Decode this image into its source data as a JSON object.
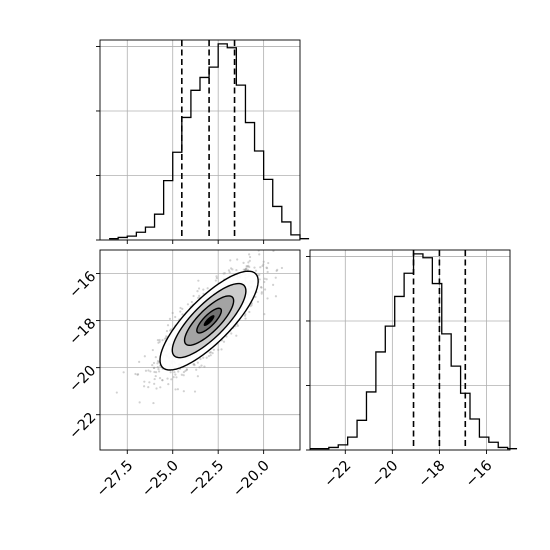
{
  "chart_data": [
    {
      "type": "histogram",
      "panel": "marginal-x",
      "x_range": [
        -29.0,
        -18.0
      ],
      "bin_edges_start": -28.5,
      "bin_width": 0.5,
      "bin_counts": [
        1,
        2,
        3,
        6,
        10,
        20,
        46,
        68,
        95,
        116,
        126,
        134,
        152,
        149,
        120,
        91,
        69,
        47,
        26,
        14,
        4,
        1
      ],
      "ylim": [
        0,
        155
      ],
      "quantile_lines": [
        -24.5,
        -23.0,
        -21.6
      ],
      "y_tick_values": [
        0,
        50,
        100,
        150
      ],
      "x_tick_values": [
        -27.5,
        -25.0,
        -22.5,
        -20.0
      ],
      "grid": true,
      "color": "#000000"
    },
    {
      "type": "histogram",
      "panel": "marginal-y",
      "x_range": [
        -23.5,
        -15.0
      ],
      "bin_edges_start": -23.5,
      "bin_width": 0.4,
      "bin_counts": [
        1,
        1,
        2,
        4,
        10,
        23,
        45,
        76,
        96,
        119,
        137,
        152,
        149,
        129,
        90,
        65,
        44,
        24,
        10,
        6,
        2,
        1
      ],
      "ylim": [
        0,
        155
      ],
      "quantile_lines": [
        -19.1,
        -18.0,
        -16.9
      ],
      "y_tick_values": [
        0,
        50,
        100,
        150
      ],
      "x_tick_values": [
        -22,
        -20,
        -18,
        -16
      ],
      "x_tick_labels": [
        "−22",
        "−20",
        "−18",
        "−16"
      ],
      "grid": true,
      "color": "#000000"
    },
    {
      "type": "scatter-contour",
      "panel": "joint",
      "x_range": [
        -29.0,
        -18.0
      ],
      "y_range": [
        -23.5,
        -15.0
      ],
      "center": [
        -23.0,
        -18.0
      ],
      "sigma": [
        1.35,
        1.05
      ],
      "correlation": 0.8,
      "contour_levels_sigma": [
        0.5,
        1.0,
        1.5,
        2.0
      ],
      "x_tick_values": [
        -27.5,
        -25.0,
        -22.5,
        -20.0
      ],
      "x_tick_labels": [
        "−27.5",
        "−25.0",
        "−22.5",
        "−20.0"
      ],
      "y_tick_values": [
        -16,
        -18,
        -20,
        -22
      ],
      "y_tick_labels": [
        "−16",
        "−18",
        "−20",
        "−22"
      ],
      "grid": true,
      "point_color": "#9a9a9a",
      "density_colors": [
        "#c9c9c9",
        "#a0a0a0",
        "#707070",
        "#3a3a3a",
        "#000000"
      ]
    }
  ]
}
